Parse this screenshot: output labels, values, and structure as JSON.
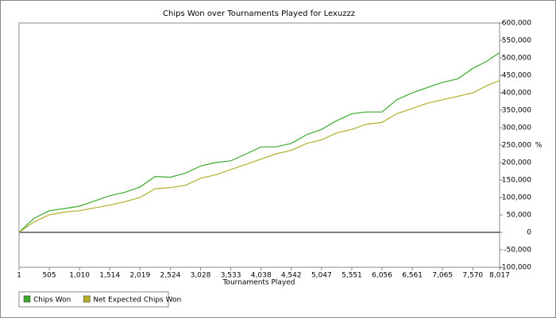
{
  "chart_data": {
    "type": "line",
    "title": "Chips Won over Tournaments Played for  Lexuzzz",
    "x_label": "Tournaments Played",
    "y_label": "%",
    "x": [
      1,
      250,
      505,
      750,
      1010,
      1260,
      1514,
      1770,
      2019,
      2270,
      2524,
      2780,
      3028,
      3280,
      3533,
      3790,
      4038,
      4290,
      4542,
      4800,
      5047,
      5300,
      5551,
      5800,
      6056,
      6300,
      6561,
      6810,
      7065,
      7320,
      7570,
      7800,
      8017
    ],
    "series": [
      {
        "name": "Chips Won",
        "color": "#3daa2e",
        "values": [
          0,
          40000,
          62000,
          68000,
          75000,
          90000,
          105000,
          115000,
          130000,
          160000,
          158000,
          170000,
          190000,
          200000,
          205000,
          225000,
          245000,
          245000,
          255000,
          280000,
          295000,
          320000,
          340000,
          345000,
          345000,
          380000,
          400000,
          415000,
          430000,
          440000,
          470000,
          490000,
          515000
        ]
      },
      {
        "name": "Net Expected Chips Won",
        "color": "#b3ae2a",
        "values": [
          0,
          30000,
          50000,
          58000,
          62000,
          70000,
          78000,
          88000,
          100000,
          125000,
          128000,
          135000,
          155000,
          165000,
          180000,
          195000,
          210000,
          225000,
          235000,
          255000,
          265000,
          285000,
          295000,
          310000,
          315000,
          340000,
          355000,
          370000,
          380000,
          390000,
          400000,
          420000,
          435000
        ]
      }
    ],
    "xlim": [
      1,
      8017
    ],
    "xticks": [
      1,
      505,
      {
        "value": 1010,
        "label": "1,010"
      },
      {
        "value": 1514,
        "label": "1,514"
      },
      {
        "value": 2019,
        "label": "2,019"
      },
      {
        "value": 2524,
        "label": "2,524"
      },
      {
        "value": 3028,
        "label": "3,028"
      },
      {
        "value": 3533,
        "label": "3,533"
      },
      {
        "value": 4038,
        "label": "4,038"
      },
      {
        "value": 4542,
        "label": "4,542"
      },
      {
        "value": 5047,
        "label": "5,047"
      },
      {
        "value": 5551,
        "label": "5,551"
      },
      {
        "value": 6056,
        "label": "6,056"
      },
      {
        "value": 6561,
        "label": "6,561"
      },
      {
        "value": 7065,
        "label": "7,065"
      },
      {
        "value": 7570,
        "label": "7,570"
      },
      {
        "value": 8017,
        "label": "8,017"
      }
    ],
    "ylim": [
      -100000,
      600000
    ],
    "yticks": [
      {
        "value": -100000,
        "label": "-100,000"
      },
      {
        "value": -50000,
        "label": "-50,000"
      },
      0,
      {
        "value": 50000,
        "label": "50,000"
      },
      {
        "value": 100000,
        "label": "100,000"
      },
      {
        "value": 150000,
        "label": "150,000"
      },
      {
        "value": 200000,
        "label": "200,000"
      },
      {
        "value": 250000,
        "label": "250,000"
      },
      {
        "value": 300000,
        "label": "300,000"
      },
      {
        "value": 350000,
        "label": "350,000"
      },
      {
        "value": 400000,
        "label": "400,000"
      },
      {
        "value": 450000,
        "label": "450,000"
      },
      {
        "value": 500000,
        "label": "500,000"
      },
      {
        "value": 550000,
        "label": "550,000"
      },
      {
        "value": 600000,
        "label": "600,000"
      }
    ],
    "y_axis_side": "right",
    "legend": "bottom-left"
  }
}
